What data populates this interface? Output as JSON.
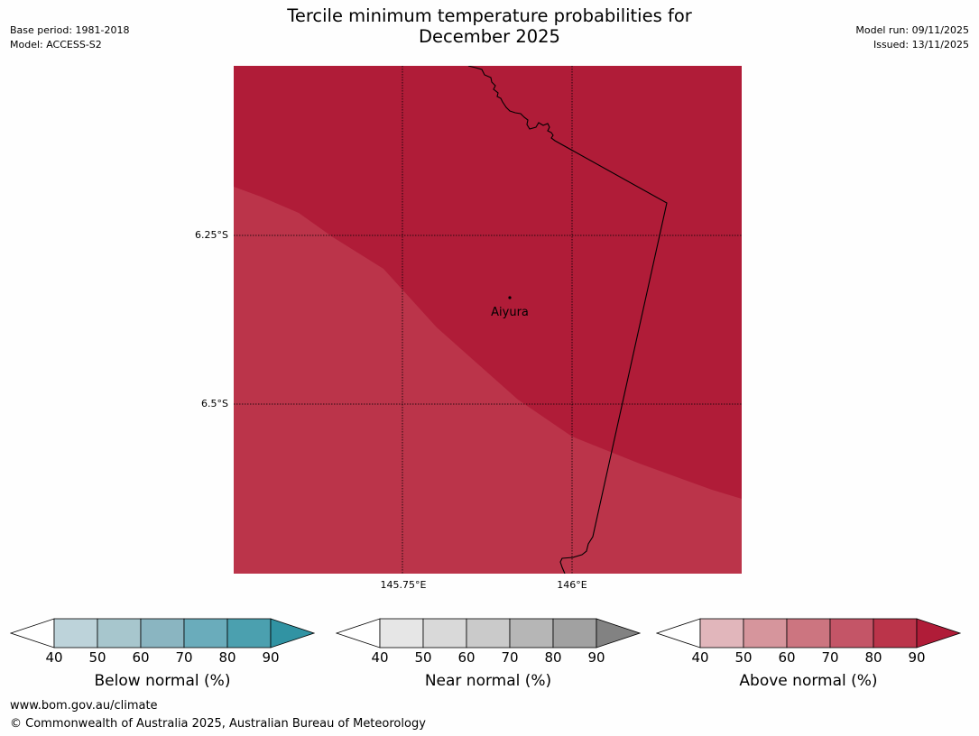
{
  "title_line1": "Tercile minimum temperature probabilities for",
  "title_line2": "December 2025",
  "base_period": "Base period: 1981-2018",
  "model": "Model: ACCESS-S2",
  "model_run": "Model run: 09/11/2025",
  "issued": "Issued: 13/11/2025",
  "map": {
    "place": "Aiyura",
    "lat_labels": [
      "6.25°S",
      "6.5°S"
    ],
    "lon_labels": [
      "145.75°E",
      "146°E"
    ],
    "colors": {
      "above_80_90": "#bb344a",
      "above_90_plus": "#b01c38"
    }
  },
  "colorbars": [
    {
      "title": "Below normal (%)",
      "ticks": [
        "40",
        "50",
        "60",
        "70",
        "80",
        "90"
      ],
      "colors": [
        "#bdd3da",
        "#a7c6cd",
        "#8ab5c1",
        "#6aacbb",
        "#4ba0af",
        "#3193a3"
      ]
    },
    {
      "title": "Near normal (%)",
      "ticks": [
        "40",
        "50",
        "60",
        "70",
        "80",
        "90"
      ],
      "colors": [
        "#e6e6e6",
        "#d9d9d9",
        "#cacaca",
        "#b6b6b6",
        "#a1a1a1",
        "#828282"
      ]
    },
    {
      "title": "Above normal (%)",
      "ticks": [
        "40",
        "50",
        "60",
        "70",
        "80",
        "90"
      ],
      "colors": [
        "#e1b6bb",
        "#d6959c",
        "#cc7580",
        "#c45567",
        "#bb344a",
        "#b01c38"
      ]
    }
  ],
  "footer": {
    "url": "www.bom.gov.au/climate",
    "copyright": "© Commonwealth of Australia 2025, Australian Bureau of Meteorology"
  }
}
